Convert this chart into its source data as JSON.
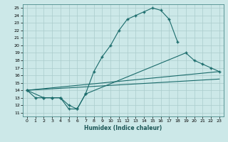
{
  "xlabel": "Humidex (Indice chaleur)",
  "background_color": "#cce8e8",
  "grid_color": "#aacccc",
  "line_color": "#1a6b6b",
  "xlim": [
    -0.5,
    23.5
  ],
  "ylim": [
    10.5,
    25.5
  ],
  "xticks": [
    0,
    1,
    2,
    3,
    4,
    5,
    6,
    7,
    8,
    9,
    10,
    11,
    12,
    13,
    14,
    15,
    16,
    17,
    18,
    19,
    20,
    21,
    22,
    23
  ],
  "yticks": [
    11,
    12,
    13,
    14,
    15,
    16,
    17,
    18,
    19,
    20,
    21,
    22,
    23,
    24,
    25
  ],
  "line1_x": [
    0,
    1,
    2,
    3,
    4,
    5,
    6,
    7,
    8,
    9,
    10,
    11,
    12,
    13,
    14,
    15,
    16,
    17,
    18
  ],
  "line1_y": [
    14,
    13,
    13,
    13,
    13,
    11.5,
    11.5,
    13.5,
    16.5,
    18.5,
    20,
    22,
    23.5,
    24,
    24.5,
    25,
    24.7,
    23.5,
    20.5
  ],
  "line2_x": [
    0,
    2,
    3,
    4,
    5,
    6,
    7,
    19,
    20,
    21,
    22,
    23
  ],
  "line2_y": [
    14,
    13,
    13,
    13,
    12,
    11.5,
    13.5,
    19,
    18,
    17.5,
    17,
    16.5
  ],
  "line3_x": [
    0,
    23
  ],
  "line3_y": [
    14,
    16.5
  ],
  "line4_x": [
    0,
    23
  ],
  "line4_y": [
    14,
    15.5
  ],
  "figsize": [
    3.2,
    2.0
  ],
  "dpi": 100
}
